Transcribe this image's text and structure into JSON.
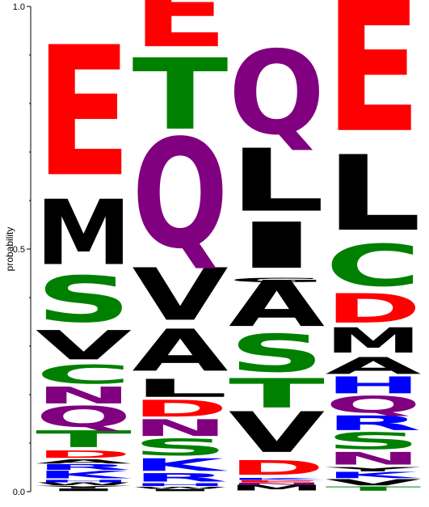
{
  "chart_data": {
    "type": "sequence-logo",
    "ylabel": "probability",
    "ylim": [
      0,
      1
    ],
    "yticks": [
      {
        "value": 0,
        "label": "0.0"
      },
      {
        "value": 0.5,
        "label": "0.5"
      },
      {
        "value": 1,
        "label": "1.0"
      }
    ],
    "colors": {
      "L": "#000000",
      "M": "#000000",
      "V": "#000000",
      "A": "#000000",
      "I": "#000000",
      "W": "#000000",
      "Y": "#000000",
      "G": "#000000",
      "E": "#ff0000",
      "D": "#ff0000",
      "Q": "#800080",
      "N": "#800080",
      "T": "#008000",
      "S": "#008000",
      "C": "#008000",
      "K": "#0000ff",
      "R": "#0000ff",
      "H": "#0000ff"
    },
    "columns": [
      {
        "position": 1,
        "letters": [
          {
            "letter": "I",
            "height": 0.006
          },
          {
            "letter": "Y",
            "height": 0.006
          },
          {
            "letter": "W",
            "height": 0.006
          },
          {
            "letter": "H",
            "height": 0.006
          },
          {
            "letter": "K",
            "height": 0.018
          },
          {
            "letter": "R",
            "height": 0.014
          },
          {
            "letter": "A",
            "height": 0.01
          },
          {
            "letter": "D",
            "height": 0.018
          },
          {
            "letter": "T",
            "height": 0.04
          },
          {
            "letter": "Q",
            "height": 0.05
          },
          {
            "letter": "N",
            "height": 0.04
          },
          {
            "letter": "C",
            "height": 0.045
          },
          {
            "letter": "V",
            "height": 0.07
          },
          {
            "letter": "S",
            "height": 0.11
          },
          {
            "letter": "M",
            "height": 0.155
          },
          {
            "letter": "E",
            "height": 0.31
          }
        ]
      },
      {
        "position": 2,
        "letters": [
          {
            "letter": "I",
            "height": 0.005
          },
          {
            "letter": "W",
            "height": 0.005
          },
          {
            "letter": "H",
            "height": 0.007
          },
          {
            "letter": "R",
            "height": 0.02
          },
          {
            "letter": "K",
            "height": 0.03
          },
          {
            "letter": "S",
            "height": 0.04
          },
          {
            "letter": "N",
            "height": 0.04
          },
          {
            "letter": "D",
            "height": 0.04
          },
          {
            "letter": "L",
            "height": 0.043
          },
          {
            "letter": "A",
            "height": 0.1
          },
          {
            "letter": "V",
            "height": 0.125
          },
          {
            "letter": "Q",
            "height": 0.26
          },
          {
            "letter": "T",
            "height": 0.17
          },
          {
            "letter": "E",
            "height": 0.17
          }
        ]
      },
      {
        "position": 3,
        "letters": [
          {
            "letter": "M",
            "height": 0.013
          },
          {
            "letter": "N",
            "height": 0.005
          },
          {
            "letter": "E",
            "height": 0.005
          },
          {
            "letter": "K",
            "height": 0.005
          },
          {
            "letter": "D",
            "height": 0.035
          },
          {
            "letter": "V",
            "height": 0.097
          },
          {
            "letter": "T",
            "height": 0.07
          },
          {
            "letter": "S",
            "height": 0.09
          },
          {
            "letter": "A",
            "height": 0.11
          },
          {
            "letter": "G",
            "height": 0.01
          },
          {
            "letter": "I",
            "height": 0.11
          },
          {
            "letter": "L",
            "height": 0.15
          },
          {
            "letter": "Q",
            "height": 0.2
          }
        ]
      },
      {
        "position": 4,
        "letters": [
          {
            "letter": "T",
            "height": 0.01
          },
          {
            "letter": "V",
            "height": 0.015
          },
          {
            "letter": "K",
            "height": 0.015
          },
          {
            "letter": "Y",
            "height": 0.01
          },
          {
            "letter": "N",
            "height": 0.03
          },
          {
            "letter": "S",
            "height": 0.04
          },
          {
            "letter": "R",
            "height": 0.035
          },
          {
            "letter": "Q",
            "height": 0.04
          },
          {
            "letter": "H",
            "height": 0.04
          },
          {
            "letter": "A",
            "height": 0.04
          },
          {
            "letter": "M",
            "height": 0.06
          },
          {
            "letter": "D",
            "height": 0.07
          },
          {
            "letter": "C",
            "height": 0.1
          },
          {
            "letter": "L",
            "height": 0.18
          },
          {
            "letter": "E",
            "height": 0.31
          }
        ]
      }
    ]
  }
}
